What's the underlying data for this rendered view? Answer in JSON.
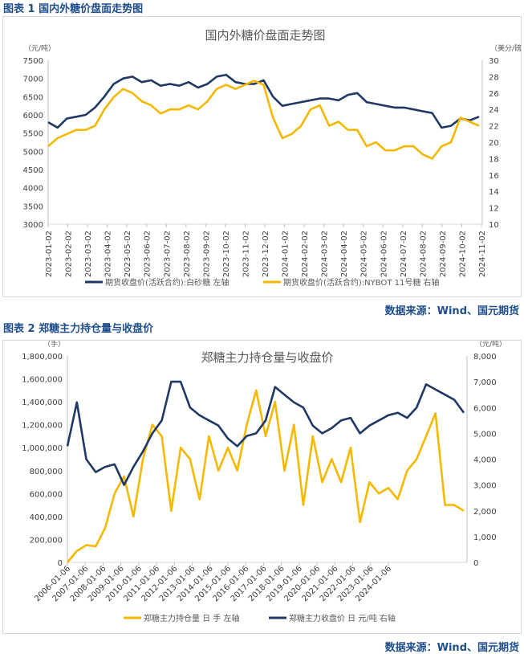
{
  "fig1": {
    "caption": "图表 1  国内外糖价盘面走势图",
    "source": "数据来源：Wind、国元期货"
  },
  "fig2": {
    "caption": "图表 2  郑糖主力持仓量与收盘价",
    "source": "数据来源：Wind、国元期货"
  },
  "chart_data": [
    {
      "type": "line",
      "title": "国内外糖价盘面走势图",
      "ylabel_left": "（元/吨）",
      "ylabel_right": "（美分/磅）",
      "ylim_left": [
        3000,
        7500
      ],
      "ylim_right": [
        10,
        30
      ],
      "yticks_left": [
        "3000",
        "3500",
        "4000",
        "4500",
        "5000",
        "5500",
        "6000",
        "6500",
        "7000",
        "7500"
      ],
      "yticks_right": [
        "10",
        "12",
        "14",
        "16",
        "18",
        "20",
        "22",
        "24",
        "26",
        "28",
        "30"
      ],
      "xticks": [
        "2023-01-02",
        "2023-02-02",
        "2023-03-02",
        "2023-04-02",
        "2023-05-02",
        "2023-06-02",
        "2023-07-02",
        "2023-08-02",
        "2023-09-02",
        "2023-10-02",
        "2023-11-02",
        "2023-12-02",
        "2024-01-02",
        "2024-02-02",
        "2024-03-02",
        "2024-04-02",
        "2024-05-02",
        "2024-06-02",
        "2024-07-02",
        "2024-08-02",
        "2024-09-02",
        "2024-10-02",
        "2024-11-02"
      ],
      "legend_position": "bottom",
      "series": [
        {
          "name": "期货收盘价(活跃合约):白砂糖  左轴",
          "axis": "left",
          "color": "#1f3864",
          "values": [
            5800,
            5650,
            5900,
            5950,
            6000,
            6200,
            6500,
            6850,
            7000,
            7050,
            6900,
            6950,
            6800,
            6850,
            6800,
            6900,
            6750,
            6850,
            7050,
            7100,
            6900,
            6850,
            6850,
            6950,
            6500,
            6250,
            6300,
            6350,
            6400,
            6450,
            6450,
            6400,
            6550,
            6600,
            6350,
            6300,
            6250,
            6200,
            6200,
            6150,
            6100,
            6050,
            5650,
            5700,
            5900,
            5850,
            5950
          ]
        },
        {
          "name": "期货收盘价(活跃合约):NYBOT 11号糖  右轴",
          "axis": "right",
          "color": "#f5b800",
          "values": [
            19.5,
            20.5,
            21,
            21.5,
            21.5,
            22,
            24,
            25.5,
            26.5,
            26,
            25,
            24.5,
            23.5,
            24,
            24,
            24.5,
            24,
            25,
            26.5,
            27,
            26.5,
            27,
            27.5,
            27,
            23,
            20.5,
            21,
            22,
            24,
            24.5,
            22,
            22.5,
            21.5,
            21.5,
            19.5,
            20,
            19,
            19,
            19.5,
            19.5,
            18.5,
            18,
            19.5,
            20,
            23,
            22.5,
            22
          ]
        }
      ]
    },
    {
      "type": "line",
      "title": "郑糖主力持仓量与收盘价",
      "ylabel_left": "（手）",
      "ylabel_right": "（元/吨）",
      "ylim_left": [
        0,
        1800000
      ],
      "ylim_right": [
        0,
        8000
      ],
      "yticks_left": [
        "0",
        "200,000",
        "400,000",
        "600,000",
        "800,000",
        "1,000,000",
        "1,200,000",
        "1,400,000",
        "1,600,000",
        "1,800,000"
      ],
      "yticks_right": [
        "0",
        "1,000",
        "2,000",
        "3,000",
        "4,000",
        "5,000",
        "6,000",
        "7,000",
        "8,000"
      ],
      "xticks": [
        "2006-01-06",
        "2007-01-06",
        "2008-01-06",
        "2009-01-06",
        "2010-01-06",
        "2011-01-06",
        "2012-01-06",
        "2013-01-06",
        "2014-01-06",
        "2015-01-06",
        "2016-01-06",
        "2017-01-06",
        "2018-01-06",
        "2019-01-06",
        "2020-01-06",
        "2021-01-06",
        "2022-01-06",
        "2023-01-06",
        "2024-01-06"
      ],
      "legend_position": "bottom",
      "series": [
        {
          "name": "郑糖主力持仓量 日 手  左轴",
          "axis": "left",
          "color": "#f5b800",
          "values": [
            0,
            100000,
            150000,
            140000,
            300000,
            600000,
            750000,
            400000,
            900000,
            1200000,
            1100000,
            450000,
            1000000,
            900000,
            550000,
            1100000,
            800000,
            1000000,
            800000,
            1200000,
            1500000,
            1100000,
            1400000,
            800000,
            1200000,
            500000,
            1100000,
            700000,
            900000,
            700000,
            1000000,
            350000,
            700000,
            600000,
            650000,
            550000,
            800000,
            900000,
            1100000,
            1300000,
            500000,
            500000,
            450000
          ]
        },
        {
          "name": "郑糖主力收盘价 日 元/吨  右轴",
          "axis": "right",
          "color": "#1f3864",
          "values": [
            4500,
            6200,
            4000,
            3500,
            3700,
            3800,
            3000,
            3700,
            4300,
            5000,
            5500,
            7000,
            7000,
            6000,
            5700,
            5500,
            5300,
            4800,
            4500,
            4900,
            5000,
            5500,
            6800,
            6500,
            6200,
            6000,
            5300,
            5000,
            5200,
            5500,
            5600,
            5000,
            5300,
            5500,
            5700,
            5800,
            5600,
            6000,
            6900,
            6700,
            6500,
            6300,
            5800
          ]
        }
      ]
    }
  ]
}
